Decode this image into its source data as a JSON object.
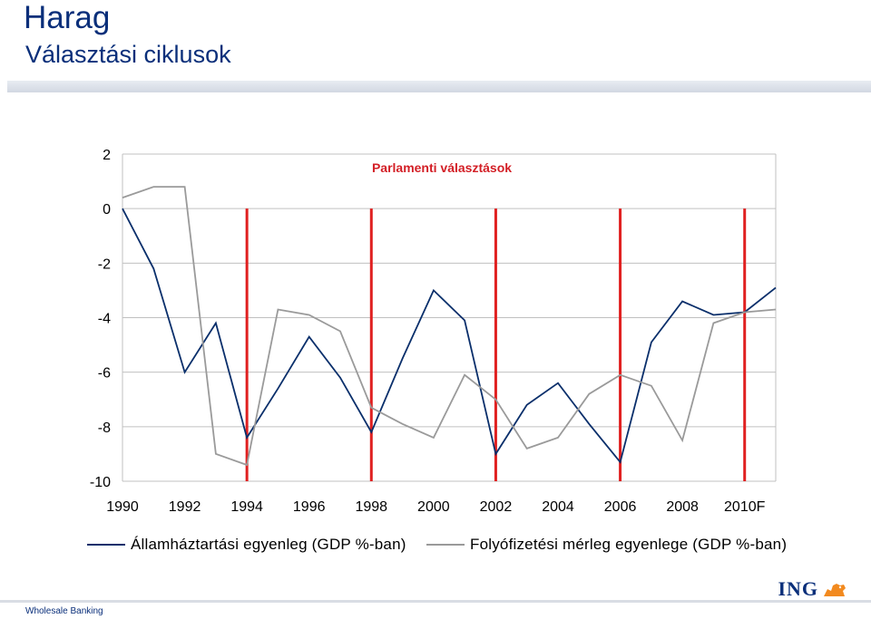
{
  "header": {
    "title": "Harag",
    "subtitle": "Választási ciklusok"
  },
  "footer": {
    "text": "Wholesale Banking",
    "logo_text": "ING",
    "logo_icon": "lion-icon"
  },
  "colors": {
    "series1": "#0a2f6b",
    "series2": "#9a9a9a",
    "election": "#e02020",
    "grid": "#c0c0c0",
    "annotation": "#d31f26"
  },
  "chart_data": {
    "type": "line",
    "title": "",
    "xlabel": "",
    "ylabel": "",
    "annotation": "Parlamenti választások",
    "x_ticks": [
      "1990",
      "1992",
      "1994",
      "1996",
      "1998",
      "2000",
      "2002",
      "2004",
      "2006",
      "2008",
      "2010F"
    ],
    "x_tick_values": [
      1990,
      1992,
      1994,
      1996,
      1998,
      2000,
      2002,
      2004,
      2006,
      2008,
      2010
    ],
    "x_range": [
      1990,
      2011
    ],
    "ylim": [
      -10,
      2
    ],
    "y_ticks": [
      2,
      0,
      -2,
      -4,
      -6,
      -8,
      -10
    ],
    "grid": true,
    "legend_position": "bottom",
    "election_years": [
      1994,
      1998,
      2002,
      2006,
      2010
    ],
    "x": [
      1990,
      1991,
      1992,
      1993,
      1994,
      1995,
      1996,
      1997,
      1998,
      1999,
      2000,
      2001,
      2002,
      2003,
      2004,
      2005,
      2006,
      2007,
      2008,
      2009,
      2010,
      2011
    ],
    "series": [
      {
        "name": "Államháztartási egyenleg (GDP %-ban)",
        "values": [
          0.0,
          -2.2,
          -6.0,
          -4.2,
          -8.4,
          -6.6,
          -4.7,
          -6.2,
          -8.2,
          -5.5,
          -3.0,
          -4.1,
          -9.0,
          -7.2,
          -6.4,
          -7.9,
          -9.3,
          -4.9,
          -3.4,
          -3.9,
          -3.8,
          -2.9
        ]
      },
      {
        "name": "Folyófizetési mérleg egyenlege (GDP %-ban)",
        "values": [
          0.4,
          0.8,
          0.8,
          -9.0,
          -9.4,
          -3.7,
          -3.9,
          -4.5,
          -7.3,
          -7.9,
          -8.4,
          -6.1,
          -7.0,
          -8.8,
          -8.4,
          -6.8,
          -6.1,
          -6.5,
          -8.5,
          -4.2,
          -3.8,
          -3.7
        ]
      }
    ]
  }
}
